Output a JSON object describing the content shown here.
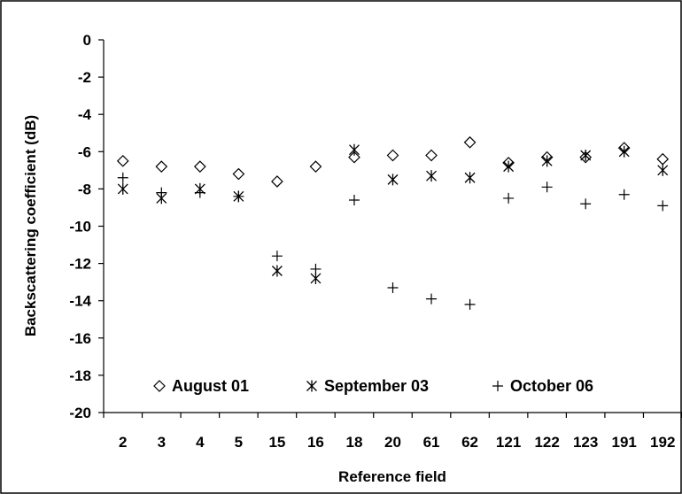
{
  "chart_data": {
    "type": "scatter",
    "title": "",
    "xlabel": "Reference field",
    "ylabel": "Backscattering coefficient (dB)",
    "categories": [
      "2",
      "3",
      "4",
      "5",
      "15",
      "16",
      "18",
      "20",
      "61",
      "62",
      "121",
      "122",
      "123",
      "191",
      "192"
    ],
    "ylim": [
      -20,
      0
    ],
    "yticks": [
      0,
      -2,
      -4,
      -6,
      -8,
      -10,
      -12,
      -14,
      -16,
      -18,
      -20
    ],
    "grid": false,
    "legend_position": "bottom-inside",
    "series": [
      {
        "name": "August 01",
        "marker": "diamond",
        "values": [
          -6.5,
          -6.8,
          -6.8,
          -7.2,
          -7.6,
          -6.8,
          -6.3,
          -6.2,
          -6.2,
          -5.5,
          -6.6,
          -6.3,
          -6.3,
          -5.8,
          -6.4
        ]
      },
      {
        "name": "September 03",
        "marker": "asterisk",
        "values": [
          -8.0,
          -8.5,
          -8.0,
          -8.4,
          -12.4,
          -12.8,
          -5.9,
          -7.5,
          -7.3,
          -7.4,
          -6.8,
          -6.5,
          -6.2,
          -6.0,
          -7.0
        ]
      },
      {
        "name": "October 06",
        "marker": "plus",
        "values": [
          -7.4,
          -8.2,
          -8.2,
          -8.4,
          -11.6,
          -12.3,
          -8.6,
          -13.3,
          -13.9,
          -14.2,
          -8.5,
          -7.9,
          -8.8,
          -8.3,
          -8.9
        ]
      }
    ],
    "colors": {
      "marker": "#000000",
      "axis": "#000000",
      "background": "#ffffff"
    }
  }
}
